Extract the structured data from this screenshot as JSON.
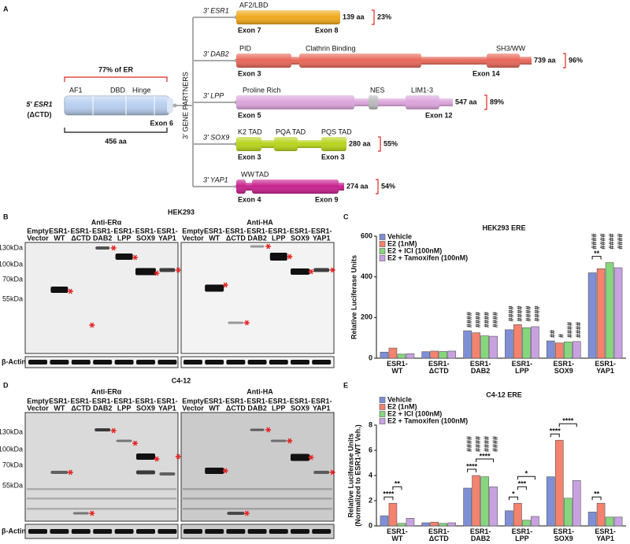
{
  "figure": {
    "panel_labels": [
      "A",
      "B",
      "C",
      "D",
      "E"
    ]
  },
  "panel_a": {
    "left_construct": {
      "name": "5' ESR1",
      "subname": "(ΔCTD)",
      "domains": [
        "AF1",
        "DBD",
        "Hinge"
      ],
      "exon": "Exon 6",
      "percent_label": "77% of ER",
      "length": "456 aa"
    },
    "tree_label": "3' GENE PARTNERS",
    "partners": [
      {
        "gene": "3' ESR1",
        "domains": [
          "AF2/LBD"
        ],
        "exons": [
          "Exon 7",
          "Exon 8"
        ],
        "length": "139 aa",
        "percent": "23%",
        "color": "#f0aa1c"
      },
      {
        "gene": "3' DAB2",
        "domains": [
          "PID",
          "Clathrin Binding",
          "SH3/WW"
        ],
        "exons": [
          "Exon 3",
          "Exon 14"
        ],
        "length": "739 aa",
        "percent": "96%",
        "color": "#e8685a"
      },
      {
        "gene": "3' LPP",
        "domains": [
          "Proline Rich",
          "NES",
          "LIM1-3"
        ],
        "exons": [
          "Exon 5",
          "Exon 12"
        ],
        "length": "547 aa",
        "percent": "89%",
        "color": "#dca6dc"
      },
      {
        "gene": "3' SOX9",
        "domains": [
          "K2 TAD",
          "PQA TAD",
          "PQS TAD"
        ],
        "exons": [
          "Exon 3",
          "Exon 3"
        ],
        "length": "280 aa",
        "percent": "55%",
        "color": "#b8d41c"
      },
      {
        "gene": "3' YAP1",
        "domains": [
          "WW",
          "TAD"
        ],
        "exons": [
          "Exon 4",
          "Exon 9"
        ],
        "length": "274 aa",
        "percent": "54%",
        "color": "#c8228e"
      }
    ]
  },
  "panel_b": {
    "title": "HEK293",
    "antibodies": [
      "Anti-ERα",
      "Anti-HA"
    ],
    "lanes": [
      [
        "Empty",
        "Vector"
      ],
      [
        "ESR1-",
        "WT"
      ],
      [
        "ESR1-",
        "ΔCTD"
      ],
      [
        "ESR1-",
        "DAB2"
      ],
      [
        "ESR1-",
        "LPP"
      ],
      [
        "ESR1-",
        "SOX9"
      ],
      [
        "ESR1-",
        "YAP1"
      ]
    ],
    "markers": [
      "130kDa",
      "100kDa",
      "70kDa",
      "55kDa"
    ],
    "loading_control": "β-Actin"
  },
  "panel_d": {
    "title": "C4-12",
    "antibodies": [
      "Anti-ERα",
      "Anti-HA"
    ],
    "lanes": [
      [
        "Empty",
        "Vector"
      ],
      [
        "ESR1-",
        "WT"
      ],
      [
        "ESR1-",
        "ΔCTD"
      ],
      [
        "ESR1-",
        "DAB2"
      ],
      [
        "ESR1-",
        "LPP"
      ],
      [
        "ESR1-",
        "SOX9"
      ],
      [
        "ESR1-",
        "YAP1"
      ]
    ],
    "markers": [
      "130kDa",
      "100kDa",
      "70kDa",
      "55kDa"
    ],
    "loading_control": "β-Actin"
  },
  "chart_data": [
    {
      "type": "bar",
      "title": "HEK293 ERE",
      "ylabel": "Relative Luciferase Units",
      "categories": [
        "ESR1-WT",
        "ESR1-ΔCTD",
        "ESR1-DAB2",
        "ESR1-LPP",
        "ESR1-SOX9",
        "ESR1-YAP1"
      ],
      "ylim": [
        0,
        600
      ],
      "yticks": [
        0,
        200,
        400,
        600
      ],
      "series": [
        {
          "name": "Vehicle",
          "color": "#7f8fd6",
          "values": [
            30,
            32,
            135,
            140,
            85,
            420
          ],
          "significance": [
            null,
            null,
            "####",
            "####",
            "##",
            "####"
          ]
        },
        {
          "name": "E2 (1nM)",
          "color": "#f4826e",
          "values": [
            50,
            35,
            125,
            165,
            75,
            440
          ],
          "significance": [
            null,
            null,
            "####",
            "####",
            "#",
            "####"
          ]
        },
        {
          "name": "E2 + ICI (100nM)",
          "color": "#86d67e",
          "values": [
            20,
            33,
            110,
            150,
            80,
            470
          ],
          "significance": [
            null,
            null,
            "####",
            "####",
            "####",
            "####"
          ]
        },
        {
          "name": "E2 + Tamoxifen (100nM)",
          "color": "#c8a2e0",
          "values": [
            22,
            35,
            108,
            155,
            82,
            445
          ],
          "significance": [
            null,
            null,
            "####",
            "####",
            "####",
            "####"
          ]
        }
      ],
      "brackets": [
        {
          "category": "ESR1-YAP1",
          "from": "Vehicle",
          "to": "E2 (1nM)",
          "text": "**"
        }
      ]
    },
    {
      "type": "bar",
      "title": "C4-12 ERE",
      "ylabel": [
        "Relative Luciferase Units",
        "(Normalized to ESR1-WT Veh.)"
      ],
      "categories": [
        "ESR1-WT",
        "ESR1-ΔCTD",
        "ESR1-DAB2",
        "ESR1-LPP",
        "ESR1-SOX9",
        "ESR1-YAP1"
      ],
      "ylim": [
        0,
        8
      ],
      "yticks": [
        0,
        2,
        4,
        6,
        8
      ],
      "series": [
        {
          "name": "Vehicle",
          "color": "#7f8fd6",
          "values": [
            0.8,
            0.25,
            3.0,
            1.2,
            3.9,
            1.1
          ],
          "significance": [
            null,
            null,
            "####",
            null,
            null,
            null
          ]
        },
        {
          "name": "E2 (1nM)",
          "color": "#f4826e",
          "values": [
            1.8,
            0.3,
            4.0,
            1.8,
            6.8,
            1.8
          ],
          "significance": [
            null,
            null,
            "####",
            null,
            null,
            null
          ]
        },
        {
          "name": "E2 + ICI (100nM)",
          "color": "#86d67e",
          "values": [
            0.2,
            0.2,
            3.9,
            0.45,
            2.2,
            0.7
          ],
          "significance": [
            null,
            null,
            "####",
            null,
            null,
            null
          ]
        },
        {
          "name": "E2 + Tamoxifen (100nM)",
          "color": "#c8a2e0",
          "values": [
            0.6,
            0.25,
            3.1,
            0.75,
            3.6,
            0.7
          ],
          "significance": [
            null,
            null,
            "####",
            null,
            null,
            null
          ]
        }
      ],
      "brackets": [
        {
          "category": "ESR1-WT",
          "from": "Vehicle",
          "to": "E2 (1nM)",
          "text": "****"
        },
        {
          "category": "ESR1-WT",
          "from": "E2 (1nM)",
          "to": "E2 + ICI (100nM)",
          "text": "**"
        },
        {
          "category": "ESR1-DAB2",
          "from": "Vehicle",
          "to": "E2 (1nM)",
          "text": "****"
        },
        {
          "category": "ESR1-DAB2",
          "from": "E2 (1nM)",
          "to": "E2 + Tamoxifen (100nM)",
          "text": "****"
        },
        {
          "category": "ESR1-LPP",
          "from": "Vehicle",
          "to": "E2 (1nM)",
          "text": "*"
        },
        {
          "category": "ESR1-LPP",
          "from": "E2 (1nM)",
          "to": "E2 + ICI (100nM)",
          "text": "***"
        },
        {
          "category": "ESR1-LPP",
          "from": "E2 (1nM)",
          "to": "E2 + Tamoxifen (100nM)",
          "text": "*"
        },
        {
          "category": "ESR1-SOX9",
          "from": "Vehicle",
          "to": "E2 (1nM)",
          "text": "****"
        },
        {
          "category": "ESR1-SOX9",
          "from": "E2 (1nM)",
          "to": "E2 + Tamoxifen (100nM)",
          "text": "****"
        },
        {
          "category": "ESR1-YAP1",
          "from": "Vehicle",
          "to": "E2 (1nM)",
          "text": "**"
        }
      ]
    }
  ]
}
